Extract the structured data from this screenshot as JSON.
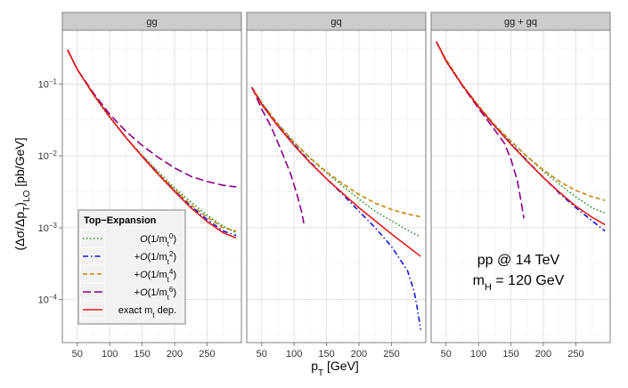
{
  "chart_data": {
    "type": "line",
    "title": "",
    "xlabel": "p_T [GeV]",
    "ylabel": "(Δσ/Δp_T)_LO [pb/GeV]",
    "y_scale": "log",
    "xlim": [
      27,
      303
    ],
    "ylim_log10": [
      -4.6,
      -0.25
    ],
    "x_ticks": [
      50,
      100,
      150,
      200,
      250
    ],
    "x_tick_labels": [
      "50",
      "100",
      "150",
      "200",
      "250"
    ],
    "y_ticks_log10": [
      -4,
      -3,
      -2,
      -1
    ],
    "grid": true,
    "legend": {
      "title": "Top−Expansion",
      "placement": "bottom-left",
      "entries": [
        {
          "label": "O(1/m_t^0)",
          "color": "#228B22",
          "dash": "dotted"
        },
        {
          "label": "+O(1/m_t^2)",
          "color": "#1515E0",
          "dash": "dashdot"
        },
        {
          "label": "+O(1/m_t^4)",
          "color": "#C8860B",
          "dash": "dashed"
        },
        {
          "label": "+O(1/m_t^6)",
          "color": "#8B008B",
          "dash": "longdash"
        },
        {
          "label": "exact m_t dep.",
          "color": "#E31A1C",
          "dash": "solid"
        }
      ]
    },
    "annotation": {
      "line1": "pp @ 14 TeV",
      "line2": "m_H = 120 GeV"
    },
    "panels": [
      {
        "strip": "gg",
        "series": [
          {
            "name": "O(1/m_t^0)",
            "points": [
              [
                35,
                0.3
              ],
              [
                50,
                0.16
              ],
              [
                75,
                0.07
              ],
              [
                100,
                0.034
              ],
              [
                125,
                0.018
              ],
              [
                150,
                0.0102
              ],
              [
                175,
                0.006
              ],
              [
                200,
                0.0036
              ],
              [
                225,
                0.0023
              ],
              [
                250,
                0.0015
              ],
              [
                275,
                0.00105
              ],
              [
                295,
                0.00085
              ]
            ]
          },
          {
            "name": "+O(1/m_t^2)",
            "points": [
              [
                35,
                0.3
              ],
              [
                50,
                0.16
              ],
              [
                75,
                0.072
              ],
              [
                100,
                0.035
              ],
              [
                125,
                0.018
              ],
              [
                150,
                0.01
              ],
              [
                175,
                0.0057
              ],
              [
                200,
                0.0033
              ],
              [
                225,
                0.002
              ],
              [
                250,
                0.0013
              ],
              [
                275,
                0.0009
              ],
              [
                295,
                0.00078
              ]
            ]
          },
          {
            "name": "+O(1/m_t^4)",
            "points": [
              [
                35,
                0.3
              ],
              [
                50,
                0.16
              ],
              [
                75,
                0.072
              ],
              [
                100,
                0.035
              ],
              [
                125,
                0.018
              ],
              [
                150,
                0.01
              ],
              [
                175,
                0.0057
              ],
              [
                200,
                0.0034
              ],
              [
                225,
                0.0021
              ],
              [
                250,
                0.0014
              ],
              [
                275,
                0.001
              ],
              [
                295,
                0.0009
              ]
            ]
          },
          {
            "name": "+O(1/m_t^6)",
            "points": [
              [
                35,
                0.3
              ],
              [
                50,
                0.16
              ],
              [
                75,
                0.075
              ],
              [
                100,
                0.038
              ],
              [
                125,
                0.022
              ],
              [
                150,
                0.014
              ],
              [
                175,
                0.0095
              ],
              [
                200,
                0.0068
              ],
              [
                225,
                0.0052
              ],
              [
                250,
                0.0044
              ],
              [
                275,
                0.0039
              ],
              [
                295,
                0.0037
              ]
            ]
          },
          {
            "name": "exact m_t dep.",
            "points": [
              [
                35,
                0.3
              ],
              [
                50,
                0.16
              ],
              [
                75,
                0.072
              ],
              [
                100,
                0.035
              ],
              [
                125,
                0.018
              ],
              [
                150,
                0.0098
              ],
              [
                175,
                0.0055
              ],
              [
                200,
                0.0032
              ],
              [
                225,
                0.0019
              ],
              [
                250,
                0.00122
              ],
              [
                275,
                0.00085
              ],
              [
                295,
                0.00072
              ]
            ]
          }
        ]
      },
      {
        "strip": "gq",
        "series": [
          {
            "name": "O(1/m_t^0)",
            "points": [
              [
                35,
                0.09
              ],
              [
                50,
                0.055
              ],
              [
                75,
                0.028
              ],
              [
                100,
                0.0155
              ],
              [
                125,
                0.0092
              ],
              [
                150,
                0.0058
              ],
              [
                175,
                0.0038
              ],
              [
                200,
                0.0025
              ],
              [
                225,
                0.0017
              ],
              [
                250,
                0.00125
              ],
              [
                275,
                0.00092
              ],
              [
                295,
                0.00075
              ]
            ]
          },
          {
            "name": "+O(1/m_t^2)",
            "points": [
              [
                35,
                0.09
              ],
              [
                50,
                0.054
              ],
              [
                75,
                0.027
              ],
              [
                100,
                0.0145
              ],
              [
                125,
                0.0082
              ],
              [
                150,
                0.0048
              ],
              [
                175,
                0.0029
              ],
              [
                200,
                0.0017
              ],
              [
                225,
                0.001
              ],
              [
                250,
                0.00055
              ],
              [
                275,
                0.00025
              ],
              [
                285,
                0.00013
              ],
              [
                290,
                7.5e-05
              ],
              [
                295,
                3.8e-05
              ]
            ]
          },
          {
            "name": "+O(1/m_t^4)",
            "points": [
              [
                35,
                0.09
              ],
              [
                50,
                0.055
              ],
              [
                75,
                0.028
              ],
              [
                100,
                0.0155
              ],
              [
                125,
                0.0093
              ],
              [
                150,
                0.006
              ],
              [
                175,
                0.0041
              ],
              [
                200,
                0.0029
              ],
              [
                225,
                0.0022
              ],
              [
                250,
                0.0018
              ],
              [
                275,
                0.00155
              ],
              [
                295,
                0.00142
              ]
            ]
          },
          {
            "name": "+O(1/m_t^6)",
            "points": [
              [
                35,
                0.09
              ],
              [
                50,
                0.045
              ],
              [
                65,
                0.025
              ],
              [
                80,
                0.012
              ],
              [
                95,
                0.0055
              ],
              [
                105,
                0.0028
              ],
              [
                112,
                0.0016
              ],
              [
                115,
                0.00115
              ]
            ]
          },
          {
            "name": "exact m_t dep.",
            "points": [
              [
                35,
                0.088
              ],
              [
                50,
                0.052
              ],
              [
                75,
                0.026
              ],
              [
                100,
                0.014
              ],
              [
                125,
                0.008
              ],
              [
                150,
                0.0048
              ],
              [
                175,
                0.003
              ],
              [
                200,
                0.0019
              ],
              [
                225,
                0.00125
              ],
              [
                250,
                0.00082
              ],
              [
                275,
                0.00055
              ],
              [
                295,
                0.0004
              ]
            ]
          }
        ]
      },
      {
        "strip": "gg + gq",
        "series": [
          {
            "name": "O(1/m_t^0)",
            "points": [
              [
                35,
                0.39
              ],
              [
                50,
                0.22
              ],
              [
                75,
                0.098
              ],
              [
                100,
                0.05
              ],
              [
                125,
                0.027
              ],
              [
                150,
                0.016
              ],
              [
                175,
                0.0098
              ],
              [
                200,
                0.0061
              ],
              [
                225,
                0.004
              ],
              [
                250,
                0.0027
              ],
              [
                275,
                0.0019
              ],
              [
                295,
                0.0016
              ]
            ]
          },
          {
            "name": "+O(1/m_t^2)",
            "points": [
              [
                35,
                0.39
              ],
              [
                50,
                0.21
              ],
              [
                75,
                0.097
              ],
              [
                100,
                0.049
              ],
              [
                125,
                0.026
              ],
              [
                150,
                0.0148
              ],
              [
                175,
                0.0086
              ],
              [
                200,
                0.005
              ],
              [
                225,
                0.003
              ],
              [
                250,
                0.0019
              ],
              [
                275,
                0.00125
              ],
              [
                295,
                0.0009
              ]
            ]
          },
          {
            "name": "+O(1/m_t^4)",
            "points": [
              [
                35,
                0.39
              ],
              [
                50,
                0.22
              ],
              [
                75,
                0.098
              ],
              [
                100,
                0.05
              ],
              [
                125,
                0.027
              ],
              [
                150,
                0.016
              ],
              [
                175,
                0.0098
              ],
              [
                200,
                0.0064
              ],
              [
                225,
                0.0044
              ],
              [
                250,
                0.0033
              ],
              [
                275,
                0.0027
              ],
              [
                295,
                0.0024
              ]
            ]
          },
          {
            "name": "+O(1/m_t^6)",
            "points": [
              [
                35,
                0.39
              ],
              [
                50,
                0.21
              ],
              [
                75,
                0.095
              ],
              [
                100,
                0.046
              ],
              [
                125,
                0.023
              ],
              [
                140,
                0.015
              ],
              [
                150,
                0.009
              ],
              [
                160,
                0.0045
              ],
              [
                165,
                0.0025
              ],
              [
                170,
                0.00135
              ]
            ]
          },
          {
            "name": "exact m_t dep.",
            "points": [
              [
                35,
                0.39
              ],
              [
                50,
                0.21
              ],
              [
                75,
                0.097
              ],
              [
                100,
                0.048
              ],
              [
                125,
                0.026
              ],
              [
                150,
                0.0145
              ],
              [
                175,
                0.0084
              ],
              [
                200,
                0.005
              ],
              [
                225,
                0.0031
              ],
              [
                250,
                0.002
              ],
              [
                275,
                0.0014
              ],
              [
                295,
                0.0011
              ]
            ]
          }
        ]
      }
    ]
  }
}
